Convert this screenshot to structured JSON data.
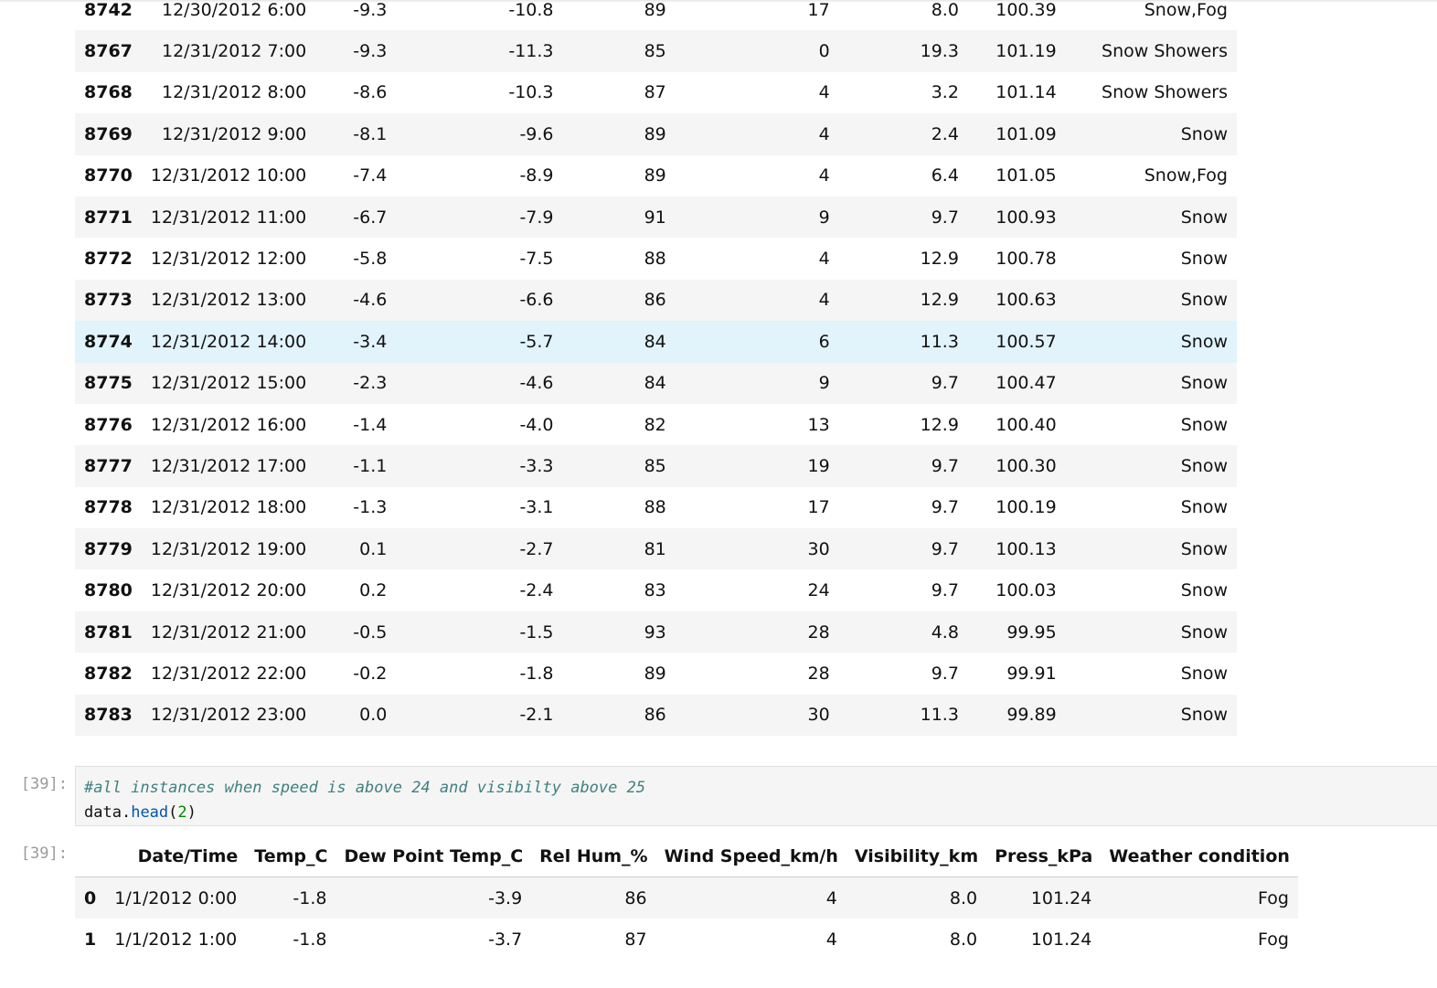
{
  "top_table": {
    "rows": [
      {
        "idx": "8742",
        "datetime": "12/30/2012 6:00",
        "temp": "-9.3",
        "dew": "-10.8",
        "hum": "89",
        "wind": "17",
        "vis": "8.0",
        "press": "100.39",
        "weather": "Snow,Fog"
      },
      {
        "idx": "8767",
        "datetime": "12/31/2012 7:00",
        "temp": "-9.3",
        "dew": "-11.3",
        "hum": "85",
        "wind": "0",
        "vis": "19.3",
        "press": "101.19",
        "weather": "Snow Showers"
      },
      {
        "idx": "8768",
        "datetime": "12/31/2012 8:00",
        "temp": "-8.6",
        "dew": "-10.3",
        "hum": "87",
        "wind": "4",
        "vis": "3.2",
        "press": "101.14",
        "weather": "Snow Showers"
      },
      {
        "idx": "8769",
        "datetime": "12/31/2012 9:00",
        "temp": "-8.1",
        "dew": "-9.6",
        "hum": "89",
        "wind": "4",
        "vis": "2.4",
        "press": "101.09",
        "weather": "Snow"
      },
      {
        "idx": "8770",
        "datetime": "12/31/2012 10:00",
        "temp": "-7.4",
        "dew": "-8.9",
        "hum": "89",
        "wind": "4",
        "vis": "6.4",
        "press": "101.05",
        "weather": "Snow,Fog"
      },
      {
        "idx": "8771",
        "datetime": "12/31/2012 11:00",
        "temp": "-6.7",
        "dew": "-7.9",
        "hum": "91",
        "wind": "9",
        "vis": "9.7",
        "press": "100.93",
        "weather": "Snow"
      },
      {
        "idx": "8772",
        "datetime": "12/31/2012 12:00",
        "temp": "-5.8",
        "dew": "-7.5",
        "hum": "88",
        "wind": "4",
        "vis": "12.9",
        "press": "100.78",
        "weather": "Snow"
      },
      {
        "idx": "8773",
        "datetime": "12/31/2012 13:00",
        "temp": "-4.6",
        "dew": "-6.6",
        "hum": "86",
        "wind": "4",
        "vis": "12.9",
        "press": "100.63",
        "weather": "Snow"
      },
      {
        "idx": "8774",
        "datetime": "12/31/2012 14:00",
        "temp": "-3.4",
        "dew": "-5.7",
        "hum": "84",
        "wind": "6",
        "vis": "11.3",
        "press": "100.57",
        "weather": "Snow",
        "highlight": true
      },
      {
        "idx": "8775",
        "datetime": "12/31/2012 15:00",
        "temp": "-2.3",
        "dew": "-4.6",
        "hum": "84",
        "wind": "9",
        "vis": "9.7",
        "press": "100.47",
        "weather": "Snow"
      },
      {
        "idx": "8776",
        "datetime": "12/31/2012 16:00",
        "temp": "-1.4",
        "dew": "-4.0",
        "hum": "82",
        "wind": "13",
        "vis": "12.9",
        "press": "100.40",
        "weather": "Snow"
      },
      {
        "idx": "8777",
        "datetime": "12/31/2012 17:00",
        "temp": "-1.1",
        "dew": "-3.3",
        "hum": "85",
        "wind": "19",
        "vis": "9.7",
        "press": "100.30",
        "weather": "Snow"
      },
      {
        "idx": "8778",
        "datetime": "12/31/2012 18:00",
        "temp": "-1.3",
        "dew": "-3.1",
        "hum": "88",
        "wind": "17",
        "vis": "9.7",
        "press": "100.19",
        "weather": "Snow"
      },
      {
        "idx": "8779",
        "datetime": "12/31/2012 19:00",
        "temp": "0.1",
        "dew": "-2.7",
        "hum": "81",
        "wind": "30",
        "vis": "9.7",
        "press": "100.13",
        "weather": "Snow"
      },
      {
        "idx": "8780",
        "datetime": "12/31/2012 20:00",
        "temp": "0.2",
        "dew": "-2.4",
        "hum": "83",
        "wind": "24",
        "vis": "9.7",
        "press": "100.03",
        "weather": "Snow"
      },
      {
        "idx": "8781",
        "datetime": "12/31/2012 21:00",
        "temp": "-0.5",
        "dew": "-1.5",
        "hum": "93",
        "wind": "28",
        "vis": "4.8",
        "press": "99.95",
        "weather": "Snow"
      },
      {
        "idx": "8782",
        "datetime": "12/31/2012 22:00",
        "temp": "-0.2",
        "dew": "-1.8",
        "hum": "89",
        "wind": "28",
        "vis": "9.7",
        "press": "99.91",
        "weather": "Snow"
      },
      {
        "idx": "8783",
        "datetime": "12/31/2012 23:00",
        "temp": "0.0",
        "dew": "-2.1",
        "hum": "86",
        "wind": "30",
        "vis": "11.3",
        "press": "99.89",
        "weather": "Snow"
      }
    ]
  },
  "cell": {
    "in_prompt": "[39]:",
    "out_prompt": "[39]:",
    "comment": "#all instances when speed is above 24 and visibilty above 25",
    "code_var": "data",
    "code_dot": ".",
    "code_method": "head",
    "code_open": "(",
    "code_arg": "2",
    "code_close": ")"
  },
  "bottom_table": {
    "headers": [
      "",
      "Date/Time",
      "Temp_C",
      "Dew Point Temp_C",
      "Rel Hum_%",
      "Wind Speed_km/h",
      "Visibility_km",
      "Press_kPa",
      "Weather condition"
    ],
    "rows": [
      {
        "idx": "0",
        "datetime": "1/1/2012 0:00",
        "temp": "-1.8",
        "dew": "-3.9",
        "hum": "86",
        "wind": "4",
        "vis": "8.0",
        "press": "101.24",
        "weather": "Fog"
      },
      {
        "idx": "1",
        "datetime": "1/1/2012 1:00",
        "temp": "-1.8",
        "dew": "-3.7",
        "hum": "87",
        "wind": "4",
        "vis": "8.0",
        "press": "101.24",
        "weather": "Fog"
      }
    ]
  }
}
